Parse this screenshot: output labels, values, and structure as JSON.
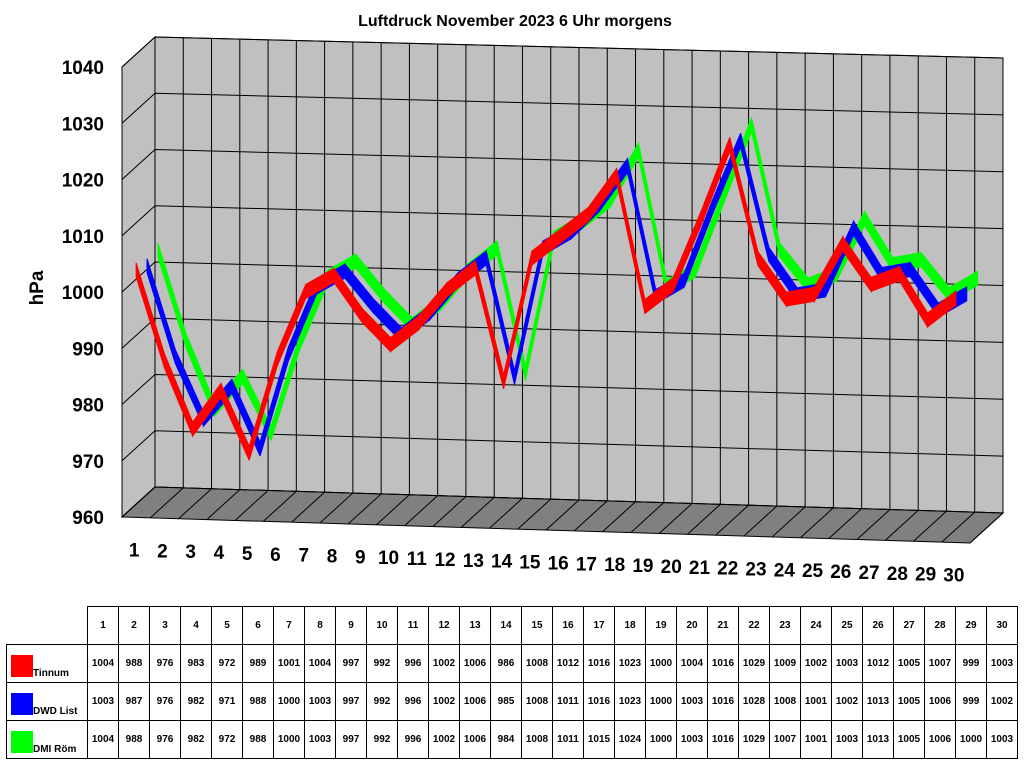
{
  "chart_data": {
    "type": "line",
    "title": "Luftdruck November 2023 6 Uhr morgens",
    "ylabel": "hPa",
    "xlabel": "",
    "ylim": [
      960,
      1040
    ],
    "yticks": [
      "960",
      "970",
      "980",
      "990",
      "1000",
      "1010",
      "1020",
      "1030",
      "1040"
    ],
    "categories": [
      "1",
      "2",
      "3",
      "4",
      "5",
      "6",
      "7",
      "8",
      "9",
      "10",
      "11",
      "12",
      "13",
      "14",
      "15",
      "16",
      "17",
      "18",
      "19",
      "20",
      "21",
      "22",
      "23",
      "24",
      "25",
      "26",
      "27",
      "28",
      "29",
      "30"
    ],
    "grid": true,
    "legend": "table below chart",
    "series": [
      {
        "name": "Tinnum",
        "color": "#ff0000",
        "values": [
          1004,
          988,
          976,
          983,
          972,
          989,
          1001,
          1004,
          997,
          992,
          996,
          1002,
          1006,
          986,
          1008,
          1012,
          1016,
          1023,
          1000,
          1004,
          1016,
          1029,
          1009,
          1002,
          1003,
          1012,
          1005,
          1007,
          999,
          1003
        ]
      },
      {
        "name": "DWD List",
        "color": "#0000ff",
        "values": [
          1003,
          987,
          976,
          982,
          971,
          988,
          1000,
          1003,
          997,
          992,
          996,
          1002,
          1006,
          985,
          1008,
          1011,
          1016,
          1023,
          1000,
          1003,
          1016,
          1028,
          1008,
          1001,
          1002,
          1013,
          1005,
          1006,
          999,
          1002
        ]
      },
      {
        "name": "DMI Röm",
        "color": "#00ff00",
        "values": [
          1004,
          988,
          976,
          982,
          972,
          988,
          1000,
          1003,
          997,
          992,
          996,
          1002,
          1006,
          984,
          1008,
          1011,
          1015,
          1024,
          1000,
          1003,
          1016,
          1029,
          1007,
          1001,
          1003,
          1013,
          1005,
          1006,
          1000,
          1003
        ]
      }
    ]
  }
}
